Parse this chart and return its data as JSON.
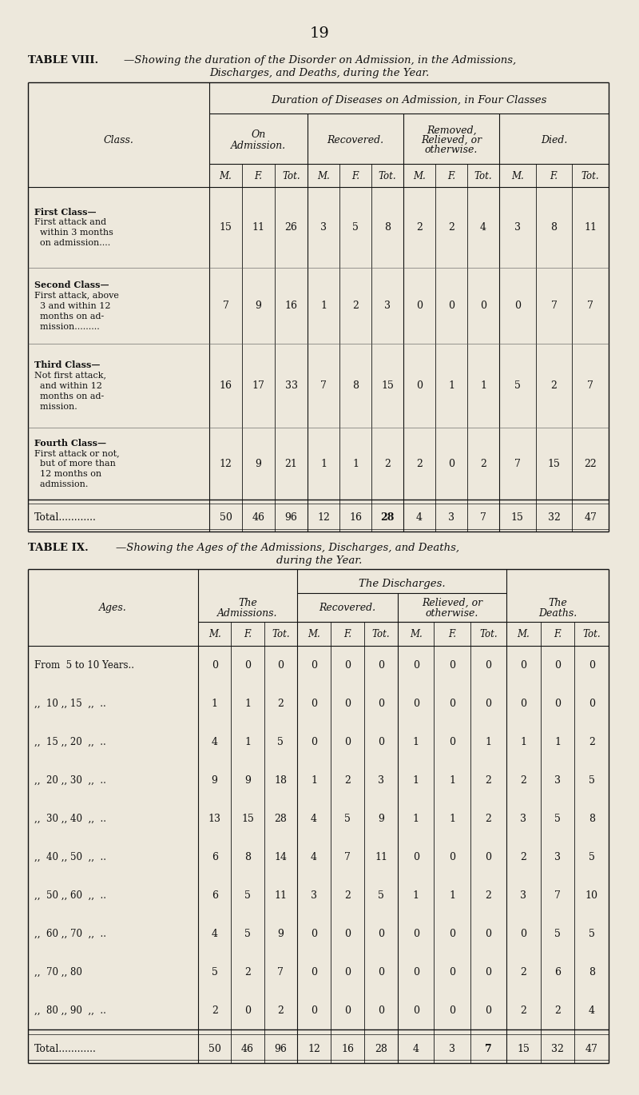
{
  "bg_color": "#ede8dc",
  "page_number": "19",
  "table8": {
    "title_bold": "TABLE VIII.",
    "title_italic1": "—Showing the duration of the Disorder on Admission, in the Admissions,",
    "title_italic2": "Discharges, and Deaths, during the Year.",
    "header_top": "Duration of Diseases on Admission, in Four Classes",
    "col_groups": [
      "On\nAdmission.",
      "Recovered.",
      "Removed,\nRelieved, or\notherwise.",
      "Died."
    ],
    "sub_cols": [
      "M.",
      "F.",
      "Tot."
    ],
    "row_labels_line1": [
      "First Class—",
      "Second Class—",
      "Third Class—",
      "Fourth Class—"
    ],
    "row_labels_rest": [
      [
        "First attack and",
        "  within 3 months",
        "  on admission...."
      ],
      [
        "First attack, above",
        "  3 and within 12",
        "  months on ad-",
        "  mission........."
      ],
      [
        "Not first attack,",
        "  and within 12",
        "  months on ad-",
        "  mission."
      ],
      [
        "First attack or not,",
        "  but of more than",
        "  12 months on",
        "  admission."
      ]
    ],
    "data": [
      [
        15,
        11,
        26,
        3,
        5,
        8,
        2,
        2,
        4,
        3,
        8,
        11
      ],
      [
        7,
        9,
        16,
        1,
        2,
        3,
        0,
        0,
        0,
        0,
        7,
        7
      ],
      [
        16,
        17,
        33,
        7,
        8,
        15,
        0,
        1,
        1,
        5,
        2,
        7
      ],
      [
        12,
        9,
        21,
        1,
        1,
        2,
        2,
        0,
        2,
        7,
        15,
        22
      ],
      [
        50,
        46,
        96,
        12,
        16,
        28,
        4,
        3,
        7,
        15,
        32,
        47
      ]
    ]
  },
  "table9": {
    "title_bold": "TABLE IX.",
    "title_italic1": "—Showing the Ages of the Admissions, Discharges, and Deaths,",
    "title_italic2": "during the Year.",
    "row_labels": [
      "From  5 to 10 Years..",
      ",,  10 ,, 15  ,,  ..",
      ",,  15 ,, 20  ,,  ..",
      ",,  20 ,, 30  ,,  ..",
      ",,  30 ,, 40  ,,  ..",
      ",,  40 ,, 50  ,,  ..",
      ",,  50 ,, 60  ,,  ..",
      ",,  60 ,, 70  ,,  ..",
      ",,  70 ,, 80",
      ",,  80 ,, 90  ,,  ..",
      "Total............"
    ],
    "data": [
      [
        0,
        0,
        0,
        0,
        0,
        0,
        0,
        0,
        0,
        0,
        0,
        0
      ],
      [
        1,
        1,
        2,
        0,
        0,
        0,
        0,
        0,
        0,
        0,
        0,
        0
      ],
      [
        4,
        1,
        5,
        0,
        0,
        0,
        1,
        0,
        1,
        1,
        1,
        2
      ],
      [
        9,
        9,
        18,
        1,
        2,
        3,
        1,
        1,
        2,
        2,
        3,
        5
      ],
      [
        13,
        15,
        28,
        4,
        5,
        9,
        1,
        1,
        2,
        3,
        5,
        8
      ],
      [
        6,
        8,
        14,
        4,
        7,
        11,
        0,
        0,
        0,
        2,
        3,
        5
      ],
      [
        6,
        5,
        11,
        3,
        2,
        5,
        1,
        1,
        2,
        3,
        7,
        10
      ],
      [
        4,
        5,
        9,
        0,
        0,
        0,
        0,
        0,
        0,
        0,
        5,
        5
      ],
      [
        5,
        2,
        7,
        0,
        0,
        0,
        0,
        0,
        0,
        2,
        6,
        8
      ],
      [
        2,
        0,
        2,
        0,
        0,
        0,
        0,
        0,
        0,
        2,
        2,
        4
      ],
      [
        50,
        46,
        96,
        12,
        16,
        28,
        4,
        3,
        7,
        15,
        32,
        47
      ]
    ]
  }
}
